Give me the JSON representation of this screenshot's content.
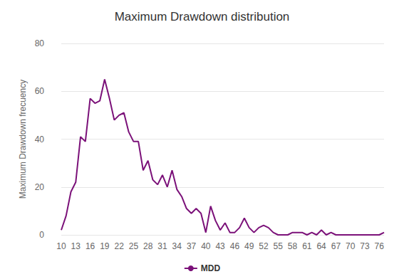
{
  "chart_data": {
    "type": "line",
    "title": "Maximum Drawdown distribution",
    "y_label": "Maximum Drawdown frecuency",
    "categories": [
      "10",
      null,
      null,
      "13",
      null,
      null,
      "16",
      null,
      null,
      "19",
      null,
      null,
      "22",
      null,
      null,
      "25",
      null,
      null,
      "28",
      null,
      null,
      "31",
      null,
      null,
      "34",
      null,
      null,
      "37",
      null,
      null,
      "40",
      null,
      null,
      "43",
      null,
      null,
      "46",
      null,
      null,
      "49",
      null,
      null,
      "52",
      null,
      null,
      "55",
      null,
      null,
      "58",
      null,
      null,
      "61",
      null,
      null,
      "64",
      null,
      null,
      "67",
      null,
      null,
      "70",
      null,
      null,
      "73",
      null,
      null,
      "76",
      null
    ],
    "series": [
      {
        "name": "MDD",
        "color": "#7b1179",
        "values": [
          2,
          8,
          18,
          22,
          41,
          39,
          57,
          55,
          56,
          65,
          57,
          48,
          50,
          51,
          43,
          39,
          39,
          27,
          31,
          23,
          21,
          25,
          20,
          27,
          19,
          16,
          11,
          9,
          11,
          9,
          1,
          12,
          6,
          2,
          5,
          1,
          1,
          3,
          7,
          3,
          1,
          3,
          4,
          3,
          1,
          0,
          0,
          0,
          1,
          1,
          1,
          0,
          1,
          0,
          2,
          0,
          1,
          0,
          0,
          0,
          0,
          0,
          0,
          0,
          0,
          0,
          0,
          1
        ]
      }
    ],
    "ylim": [
      0,
      80
    ],
    "yticks": [
      0,
      20,
      40,
      60,
      80
    ],
    "grid": true,
    "legend": "bottom"
  }
}
